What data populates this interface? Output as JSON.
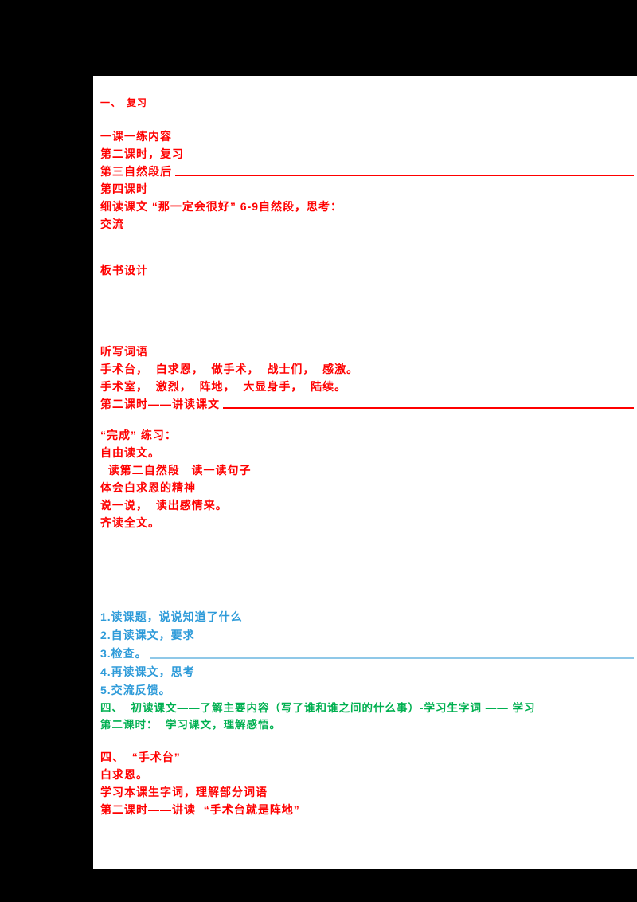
{
  "colors": {
    "red": "#ff0000",
    "blue": "#2e9bd9",
    "lightblue": "#8fc8e8",
    "green": "#00b050",
    "paper": "#ffffff",
    "backdrop": "#000000"
  },
  "document": {
    "kind": "lesson-notes-page"
  },
  "sections": [
    {
      "name": "top-heading",
      "color": "red",
      "lines": [
        {
          "text": "一、　复习"
        }
      ]
    },
    {
      "name": "red-block-1",
      "color": "red",
      "lines": [
        {
          "text": "一课一练内容"
        },
        {
          "text": "第二课时，复习"
        },
        {
          "text": "第三自然段后",
          "rule": "red"
        },
        {
          "text": "第四课时"
        },
        {
          "text": "细读课文 “那一定会很好” 6-9自然段，思考："
        },
        {
          "text": "交流"
        }
      ]
    },
    {
      "name": "red-block-2",
      "color": "red",
      "lines": [
        {
          "text": "板书设计"
        }
      ]
    },
    {
      "name": "red-block-3",
      "color": "red",
      "lines": [
        {
          "text": "听写词语"
        },
        {
          "text": "手术台，  白求恩，  做手术，  战士们，  感激。"
        },
        {
          "text": "手术室，  激烈，  阵地，  大显身手，  陆续。"
        },
        {
          "text": "第二课时——讲读课文",
          "rule": "red"
        }
      ]
    },
    {
      "name": "red-block-4",
      "color": "red",
      "lines": [
        {
          "text": "“完成” 练习："
        },
        {
          "text": "自由读文。"
        },
        {
          "text": "  读第二自然段   读一读句子"
        },
        {
          "text": "体会白求恩的精神"
        },
        {
          "text": "说一说，  读出感情来。"
        },
        {
          "text": "齐读全文。"
        }
      ]
    },
    {
      "name": "blue-block",
      "color": "blue",
      "lines": [
        {
          "text": "1.读课题，说说知道了什么"
        },
        {
          "text": "2.自读课文，要求"
        },
        {
          "text": "3.检查。",
          "rule": "lightblue"
        },
        {
          "text": "4.再读课文，思考"
        },
        {
          "text": "5.交流反馈。"
        }
      ]
    },
    {
      "name": "green-block",
      "color": "green",
      "lines": [
        {
          "text": "四、  初读课文——了解主要内容（写了谁和谁之间的什么事）-学习生字词 —— 学习"
        },
        {
          "text": "第二课时：  学习课文，理解感悟。"
        }
      ]
    },
    {
      "name": "red-block-5",
      "color": "red",
      "lines": [
        {
          "text": "四、  “手术台”"
        },
        {
          "text": "白求恩。"
        },
        {
          "text": "学习本课生字词，理解部分词语"
        },
        {
          "text": "第二课时——讲读  “手术台就是阵地”"
        }
      ]
    }
  ]
}
